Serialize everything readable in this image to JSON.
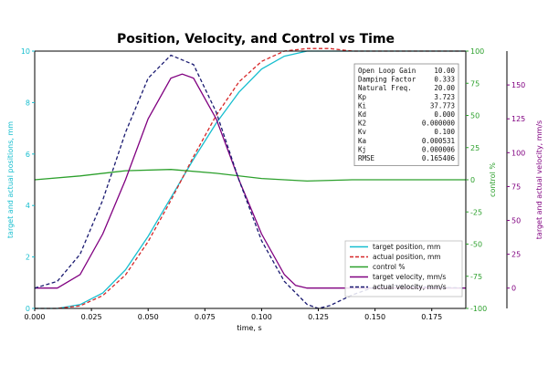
{
  "chart_data": {
    "type": "line",
    "title": "Position, Velocity, and Control vs Time",
    "xlabel": "time, s",
    "xlim": [
      0,
      0.19
    ],
    "x_ticks": [
      "0.000",
      "0.025",
      "0.050",
      "0.075",
      "0.100",
      "0.125",
      "0.150",
      "0.175"
    ],
    "axes": {
      "left": {
        "label": "target and actual positions, mm",
        "ylim": [
          0,
          10
        ],
        "ticks": [
          "0",
          "2",
          "4",
          "6",
          "8",
          "10"
        ],
        "color": "#17becf"
      },
      "right1": {
        "label": "control %",
        "ylim": [
          -100,
          100
        ],
        "ticks": [
          "-100",
          "-75",
          "-50",
          "-25",
          "0",
          "25",
          "50",
          "75",
          "100"
        ],
        "color": "#2ca02c"
      },
      "right2": {
        "label": "target and actual velocity, mm/s",
        "ylim": [
          -15,
          175
        ],
        "ticks": [
          "0",
          "25",
          "50",
          "75",
          "100",
          "125",
          "150"
        ],
        "color": "#800080"
      }
    },
    "grid": false,
    "legend_position": "lower-right",
    "series": [
      {
        "name": "target position, mm",
        "axis": "left",
        "color": "#17becf",
        "dash": "solid",
        "x": [
          0,
          0.01,
          0.02,
          0.03,
          0.04,
          0.05,
          0.06,
          0.07,
          0.08,
          0.09,
          0.1,
          0.11,
          0.12,
          0.13,
          0.19
        ],
        "values": [
          0,
          0,
          0.15,
          0.6,
          1.5,
          2.8,
          4.3,
          5.8,
          7.2,
          8.4,
          9.3,
          9.8,
          10,
          10,
          10
        ]
      },
      {
        "name": "actual position, mm",
        "axis": "left",
        "color": "#d62728",
        "dash": "dashed",
        "x": [
          0,
          0.01,
          0.02,
          0.03,
          0.04,
          0.05,
          0.06,
          0.07,
          0.08,
          0.09,
          0.1,
          0.11,
          0.12,
          0.13,
          0.14,
          0.16,
          0.19
        ],
        "values": [
          0,
          0,
          0.1,
          0.5,
          1.3,
          2.6,
          4.2,
          5.9,
          7.5,
          8.8,
          9.6,
          10.0,
          10.1,
          10.1,
          10.0,
          10.0,
          10.0
        ]
      },
      {
        "name": "control %",
        "axis": "right1",
        "color": "#2ca02c",
        "dash": "solid",
        "x": [
          0,
          0.02,
          0.04,
          0.06,
          0.08,
          0.1,
          0.12,
          0.14,
          0.19
        ],
        "values": [
          0,
          3,
          7,
          8,
          5,
          1,
          -1,
          0,
          0
        ]
      },
      {
        "name": "target velocity, mm/s",
        "axis": "right2",
        "color": "#800080",
        "dash": "solid",
        "x": [
          0,
          0.01,
          0.02,
          0.03,
          0.04,
          0.05,
          0.06,
          0.065,
          0.07,
          0.08,
          0.09,
          0.1,
          0.11,
          0.115,
          0.12,
          0.19
        ],
        "values": [
          0,
          0,
          10,
          40,
          80,
          125,
          155,
          158,
          155,
          125,
          80,
          40,
          10,
          2,
          0,
          0
        ]
      },
      {
        "name": "actual velocity, mm/s",
        "axis": "right2",
        "color": "#191970",
        "dash": "dashed",
        "x": [
          0,
          0.01,
          0.02,
          0.03,
          0.04,
          0.05,
          0.06,
          0.07,
          0.08,
          0.09,
          0.1,
          0.11,
          0.12,
          0.125,
          0.13,
          0.14,
          0.15,
          0.16,
          0.17,
          0.19
        ],
        "values": [
          0,
          5,
          25,
          65,
          115,
          155,
          172,
          165,
          130,
          80,
          35,
          5,
          -12,
          -15,
          -13,
          -5,
          1,
          2,
          1,
          0
        ]
      }
    ],
    "stats_box": [
      {
        "label": "Open Loop Gain",
        "value": "10.00"
      },
      {
        "label": "Damping Factor",
        "value": "0.333"
      },
      {
        "label": "Natural Freq.",
        "value": "20.00"
      },
      {
        "label": "Kp",
        "value": "3.723"
      },
      {
        "label": "Ki",
        "value": "37.773"
      },
      {
        "label": "Kd",
        "value": "0.000"
      },
      {
        "label": "K2",
        "value": "0.000000"
      },
      {
        "label": "Kv",
        "value": "0.100"
      },
      {
        "label": "Ka",
        "value": "0.000531"
      },
      {
        "label": "Kj",
        "value": "0.000006"
      },
      {
        "label": "RMSE",
        "value": "0.165406"
      }
    ]
  }
}
